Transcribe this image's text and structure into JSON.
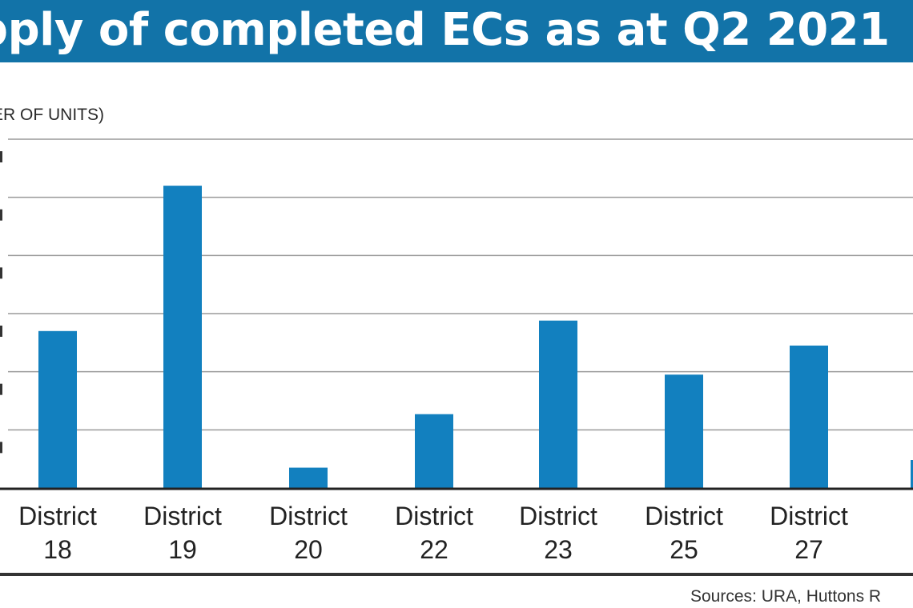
{
  "header": {
    "title": "pply of completed ECs as at Q2 2021"
  },
  "footer": {
    "source": "Sources: URA, Huttons R"
  },
  "colors": {
    "title_bar": "#1273a8",
    "bar": "#1280bf",
    "grid": "#9a9a9a",
    "axis": "#222222"
  },
  "chart_data": {
    "type": "bar",
    "title": "pply of completed ECs as at Q2 2021",
    "ylabel": "ER OF UNITS)",
    "xlabel": "",
    "grid": true,
    "ylim": [
      0,
      6
    ],
    "categories": [
      [
        "District",
        "18"
      ],
      [
        "District",
        "19"
      ],
      [
        "District",
        "20"
      ],
      [
        "District",
        "22"
      ],
      [
        "District",
        "23"
      ],
      [
        "District",
        "25"
      ],
      [
        "District",
        "27"
      ],
      [
        "Di",
        ""
      ]
    ],
    "values": [
      2.7,
      5.2,
      0.35,
      1.27,
      2.88,
      1.95,
      2.45,
      null
    ]
  }
}
